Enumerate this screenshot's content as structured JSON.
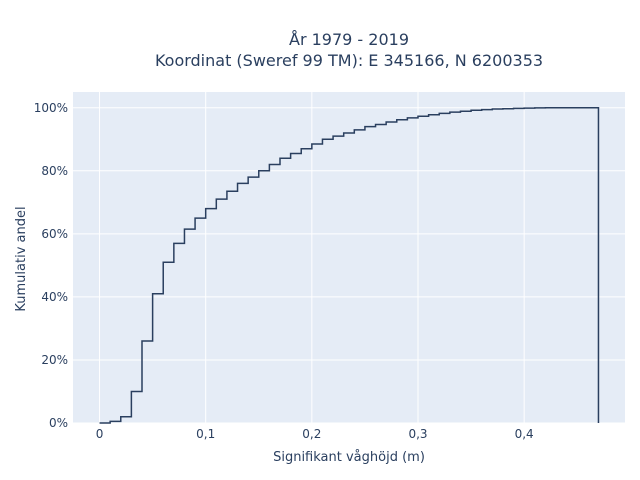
{
  "chart_data": {
    "type": "line",
    "line_shape": "step",
    "title": "År 1979 - 2019",
    "subtitle": "Koordinat (Sweref 99 TM): E 345166, N 6200353",
    "xlabel": "Signifikant våghöjd (m)",
    "ylabel": "Kumulativ andel",
    "xlim": [
      -0.025,
      0.495
    ],
    "ylim": [
      0,
      1.05
    ],
    "x_ticks": [
      0,
      0.1,
      0.2,
      0.3,
      0.4
    ],
    "x_tick_labels": [
      "0",
      "0,1",
      "0,2",
      "0,3",
      "0,4"
    ],
    "y_ticks": [
      0,
      0.2,
      0.4,
      0.6,
      0.8,
      1.0
    ],
    "y_tick_labels": [
      "0%",
      "20%",
      "40%",
      "60%",
      "80%",
      "100%"
    ],
    "grid": true,
    "legend": "none",
    "colors": {
      "plot_bg": "#e5ecf6",
      "grid": "#ffffff",
      "line": "#2a3f5f",
      "text": "#2a3f5f"
    },
    "series": [
      {
        "x": [
          0,
          0.01,
          0.02,
          0.03,
          0.04,
          0.05,
          0.06,
          0.07,
          0.08,
          0.09,
          0.1,
          0.11,
          0.12,
          0.13,
          0.14,
          0.15,
          0.16,
          0.17,
          0.18,
          0.19,
          0.2,
          0.21,
          0.22,
          0.23,
          0.24,
          0.25,
          0.26,
          0.27,
          0.28,
          0.29,
          0.3,
          0.31,
          0.32,
          0.33,
          0.34,
          0.35,
          0.36,
          0.37,
          0.38,
          0.39,
          0.4,
          0.41,
          0.42,
          0.43,
          0.44,
          0.45,
          0.46,
          0.47
        ],
        "y": [
          0,
          0.005,
          0.02,
          0.1,
          0.26,
          0.41,
          0.51,
          0.57,
          0.615,
          0.65,
          0.68,
          0.71,
          0.735,
          0.76,
          0.78,
          0.8,
          0.82,
          0.84,
          0.855,
          0.87,
          0.885,
          0.9,
          0.91,
          0.92,
          0.93,
          0.94,
          0.947,
          0.955,
          0.962,
          0.968,
          0.973,
          0.978,
          0.982,
          0.986,
          0.989,
          0.992,
          0.994,
          0.996,
          0.997,
          0.998,
          0.999,
          0.9995,
          1.0,
          1.0,
          1.0,
          1.0,
          1.0,
          0
        ]
      }
    ]
  }
}
